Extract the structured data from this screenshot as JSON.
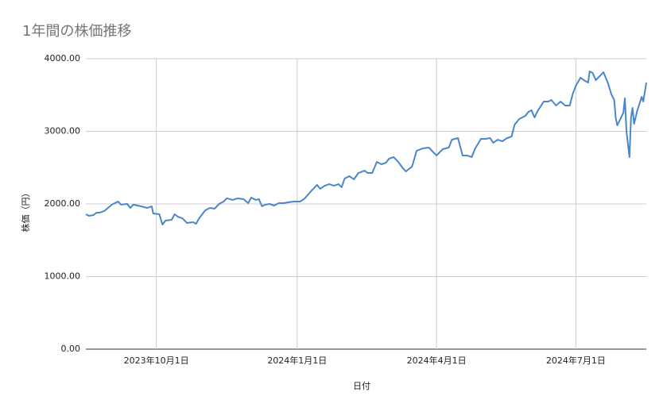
{
  "chart_data": {
    "type": "line",
    "title": "1年間の株価推移",
    "x_label": "日付",
    "y_label": "株価（円）",
    "color": "#4a86c8",
    "grid": true,
    "xlim": [
      "2023-08-16",
      "2024-08-16"
    ],
    "xticks": [
      {
        "value": "2023-10-01",
        "label": "2023年10月1日"
      },
      {
        "value": "2024-01-01",
        "label": "2024年1月1日"
      },
      {
        "value": "2024-04-01",
        "label": "2024年4月1日"
      },
      {
        "value": "2024-07-01",
        "label": "2024年7月1日"
      }
    ],
    "ylim": [
      0,
      4000
    ],
    "yticks": [
      {
        "value": 0,
        "label": "0.00"
      },
      {
        "value": 1000,
        "label": "1000.00"
      },
      {
        "value": 2000,
        "label": "2000.00"
      },
      {
        "value": 3000,
        "label": "3000.00"
      },
      {
        "value": 4000,
        "label": "4000.00"
      }
    ],
    "x": [
      "2023-08-16",
      "2023-08-18",
      "2023-08-21",
      "2023-08-23",
      "2023-08-25",
      "2023-08-28",
      "2023-09-02",
      "2023-09-06",
      "2023-09-08",
      "2023-09-12",
      "2023-09-14",
      "2023-09-16",
      "2023-09-21",
      "2023-09-25",
      "2023-09-28",
      "2023-09-29",
      "2023-10-03",
      "2023-10-05",
      "2023-10-07",
      "2023-10-11",
      "2023-10-13",
      "2023-10-15",
      "2023-10-18",
      "2023-10-21",
      "2023-10-25",
      "2023-10-27",
      "2023-10-29",
      "2023-11-02",
      "2023-11-05",
      "2023-11-08",
      "2023-11-11",
      "2023-11-14",
      "2023-11-16",
      "2023-11-20",
      "2023-11-23",
      "2023-11-27",
      "2023-11-30",
      "2023-12-02",
      "2023-12-05",
      "2023-12-07",
      "2023-12-09",
      "2023-12-11",
      "2023-12-14",
      "2023-12-17",
      "2023-12-20",
      "2023-12-23",
      "2023-12-26",
      "2023-12-30",
      "2024-01-03",
      "2024-01-06",
      "2024-01-10",
      "2024-01-14",
      "2024-01-16",
      "2024-01-19",
      "2024-01-22",
      "2024-01-25",
      "2024-01-28",
      "2024-01-30",
      "2024-02-01",
      "2024-02-04",
      "2024-02-07",
      "2024-02-10",
      "2024-02-14",
      "2024-02-16",
      "2024-02-19",
      "2024-02-22",
      "2024-02-25",
      "2024-02-28",
      "2024-03-01",
      "2024-03-04",
      "2024-03-07",
      "2024-03-10",
      "2024-03-12",
      "2024-03-16",
      "2024-03-19",
      "2024-03-23",
      "2024-03-27",
      "2024-03-30",
      "2024-04-01",
      "2024-04-05",
      "2024-04-09",
      "2024-04-11",
      "2024-04-15",
      "2024-04-18",
      "2024-04-21",
      "2024-04-24",
      "2024-04-26",
      "2024-04-30",
      "2024-05-03",
      "2024-05-06",
      "2024-05-08",
      "2024-05-11",
      "2024-05-14",
      "2024-05-17",
      "2024-05-20",
      "2024-05-22",
      "2024-05-25",
      "2024-05-29",
      "2024-05-31",
      "2024-06-02",
      "2024-06-04",
      "2024-06-06",
      "2024-06-10",
      "2024-06-13",
      "2024-06-15",
      "2024-06-18",
      "2024-06-21",
      "2024-06-24",
      "2024-06-27",
      "2024-06-29",
      "2024-07-01",
      "2024-07-04",
      "2024-07-07",
      "2024-07-09",
      "2024-07-10",
      "2024-07-12",
      "2024-07-14",
      "2024-07-17",
      "2024-07-19",
      "2024-07-22",
      "2024-07-24",
      "2024-07-26",
      "2024-07-27",
      "2024-07-28",
      "2024-07-30",
      "2024-08-01",
      "2024-08-02",
      "2024-08-03",
      "2024-08-05",
      "2024-08-06",
      "2024-08-07",
      "2024-08-08",
      "2024-08-10",
      "2024-08-13",
      "2024-08-14",
      "2024-08-16"
    ],
    "values": [
      1858,
      1836,
      1847,
      1880,
      1880,
      1902,
      1990,
      2033,
      1990,
      2000,
      1945,
      1990,
      1967,
      1945,
      1967,
      1869,
      1858,
      1716,
      1770,
      1781,
      1858,
      1825,
      1803,
      1738,
      1749,
      1727,
      1803,
      1913,
      1945,
      1934,
      2000,
      2033,
      2077,
      2055,
      2077,
      2066,
      2011,
      2087,
      2055,
      2066,
      1967,
      1989,
      2000,
      1978,
      2011,
      2011,
      2022,
      2033,
      2033,
      2077,
      2175,
      2262,
      2208,
      2251,
      2273,
      2251,
      2273,
      2230,
      2350,
      2383,
      2339,
      2426,
      2459,
      2426,
      2426,
      2579,
      2546,
      2568,
      2623,
      2645,
      2579,
      2492,
      2448,
      2514,
      2732,
      2765,
      2776,
      2710,
      2667,
      2754,
      2776,
      2885,
      2907,
      2667,
      2667,
      2645,
      2754,
      2896,
      2896,
      2907,
      2842,
      2885,
      2863,
      2907,
      2929,
      3093,
      3169,
      3213,
      3268,
      3290,
      3191,
      3279,
      3410,
      3410,
      3432,
      3355,
      3410,
      3355,
      3355,
      3519,
      3628,
      3738,
      3694,
      3672,
      3825,
      3803,
      3705,
      3770,
      3814,
      3661,
      3519,
      3432,
      3191,
      3082,
      3169,
      3257,
      3453,
      3005,
      2645,
      3191,
      3322,
      3104,
      3279,
      3475,
      3410,
      3672
    ]
  }
}
